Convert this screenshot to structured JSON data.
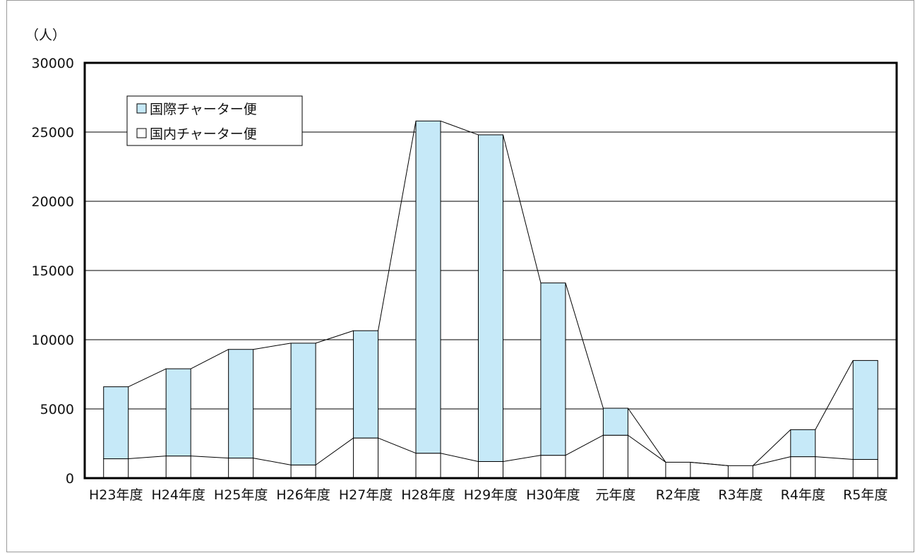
{
  "chart_data": {
    "type": "bar",
    "stacked": true,
    "unit_label": "（人）",
    "categories": [
      "H23年度",
      "H24年度",
      "H25年度",
      "H26年度",
      "H27年度",
      "H28年度",
      "H29年度",
      "H30年度",
      "元年度",
      "R2年度",
      "R3年度",
      "R4年度",
      "R5年度"
    ],
    "series": [
      {
        "name": "国内チャーター便",
        "color": "#ffffff",
        "values": [
          1400,
          1600,
          1450,
          950,
          2900,
          1800,
          1200,
          1650,
          3100,
          1150,
          900,
          1550,
          1350
        ]
      },
      {
        "name": "国際チャーター便",
        "color": "#c6e9f8",
        "values": [
          5200,
          6300,
          7850,
          8800,
          7750,
          24000,
          23600,
          12450,
          1950,
          0,
          0,
          1950,
          7150
        ]
      }
    ],
    "ylim": [
      0,
      30000
    ],
    "yticks": [
      0,
      5000,
      10000,
      15000,
      20000,
      25000,
      30000
    ],
    "grid": true,
    "connector_lines": true,
    "legend_position": "top-left",
    "legend_order": [
      "国際チャーター便",
      "国内チャーター便"
    ],
    "xlabel": "",
    "ylabel": ""
  }
}
